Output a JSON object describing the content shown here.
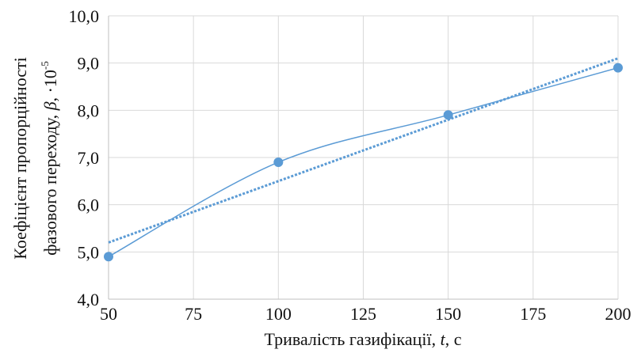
{
  "chart_data": {
    "type": "line",
    "x": [
      50,
      100,
      150,
      200
    ],
    "series": [
      {
        "color": "#5b9bd5",
        "values": [
          4.9,
          6.9,
          7.9,
          8.9
        ]
      }
    ],
    "trendline": "linear",
    "smooth": true,
    "markers": true,
    "grid": true,
    "xlim": [
      50,
      200
    ],
    "xticks": [
      50,
      75,
      100,
      125,
      150,
      175,
      200
    ],
    "ylim": [
      4,
      10
    ],
    "yticks": [
      {
        "value": 4,
        "label": "4,0"
      },
      {
        "value": 5,
        "label": "5,0"
      },
      {
        "value": 6,
        "label": "6,0"
      },
      {
        "value": 7,
        "label": "7,0"
      },
      {
        "value": 8,
        "label": "8,0"
      },
      {
        "value": 9,
        "label": "9,0"
      },
      {
        "value": 10,
        "label": "10,0"
      }
    ],
    "xlabel": [
      "Тривалість газифікації, ",
      "t",
      ", с"
    ],
    "ylabel": [
      "Коефіцієнт пропорційності",
      "фазового переходу, ",
      "β",
      ", ·10",
      "-5"
    ]
  }
}
